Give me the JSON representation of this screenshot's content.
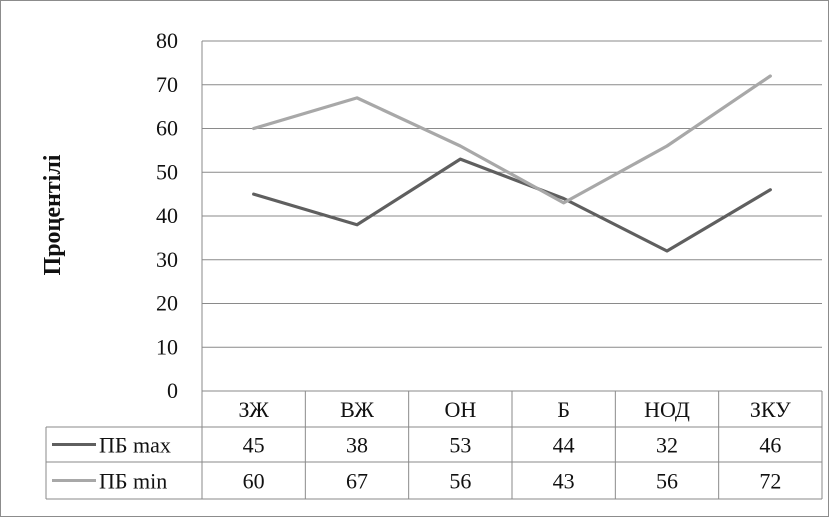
{
  "chart_data": {
    "type": "line",
    "title": "",
    "xlabel": "",
    "ylabel": "Процентілі",
    "ylim": [
      0,
      80
    ],
    "ytick_step": 10,
    "grid": true,
    "legend": "data-table-left",
    "categories": [
      "ЗЖ",
      "ВЖ",
      "ОН",
      "Б",
      "НОД",
      "ЗКУ"
    ],
    "series": [
      {
        "name": "ПБ max",
        "values": [
          45,
          38,
          53,
          44,
          32,
          46
        ],
        "color": "#5f5f5f"
      },
      {
        "name": "ПБ min",
        "values": [
          60,
          67,
          56,
          43,
          56,
          72
        ],
        "color": "#a8a8a8"
      }
    ]
  }
}
